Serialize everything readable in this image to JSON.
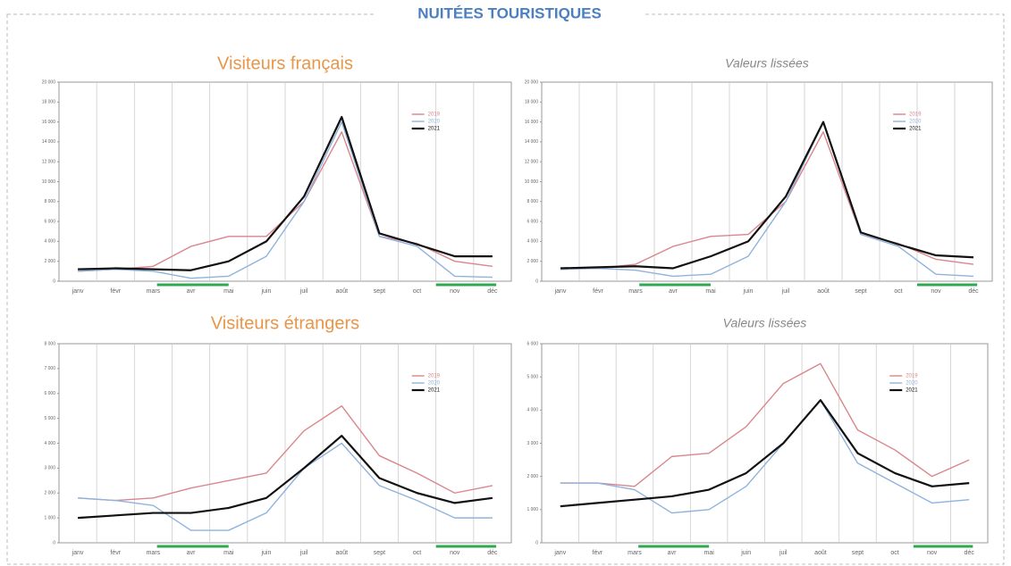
{
  "header": {
    "title": "NUITÉES TOURISTIQUES"
  },
  "chart_data": [
    {
      "type": "line",
      "title": "Visiteurs français",
      "title_color": "#e8964a",
      "title_italic": false,
      "categories": [
        "janv",
        "févr",
        "mars",
        "avr",
        "mai",
        "juin",
        "juil",
        "août",
        "sept",
        "oct",
        "nov",
        "déc"
      ],
      "series": [
        {
          "name": "2019",
          "color": "#d9868c",
          "values": [
            1000,
            1200,
            1500,
            3500,
            4500,
            4500,
            8000,
            15000,
            4500,
            3800,
            2000,
            1500
          ]
        },
        {
          "name": "2020",
          "color": "#8fb3dc",
          "values": [
            1000,
            1200,
            1000,
            300,
            500,
            2500,
            8000,
            16000,
            4500,
            3500,
            500,
            400
          ]
        },
        {
          "name": "2021",
          "color": "#111111",
          "values": [
            1200,
            1300,
            1200,
            1100,
            2000,
            4000,
            8500,
            16500,
            4800,
            3700,
            2500,
            2500
          ]
        }
      ],
      "ylim": [
        0,
        20000
      ],
      "yticks": [
        0,
        {
          "value": 2000,
          "label": "2 000"
        },
        {
          "value": 4000,
          "label": "4 000"
        },
        {
          "value": 6000,
          "label": "6 000"
        },
        {
          "value": 8000,
          "label": "8 000"
        },
        {
          "value": 10000,
          "label": "10 000"
        },
        {
          "value": 12000,
          "label": "12 000"
        },
        {
          "value": 14000,
          "label": "14 000"
        },
        {
          "value": 16000,
          "label": "16 000"
        },
        {
          "value": 18000,
          "label": "18 000"
        },
        {
          "value": 20000,
          "label": "20 000"
        }
      ],
      "legend": "upper right",
      "grid": true
    },
    {
      "type": "line",
      "title": "Valeurs lissées",
      "title_color": "#888888",
      "title_italic": true,
      "categories": [
        "janv",
        "févr",
        "mars",
        "avr",
        "mai",
        "juin",
        "juil",
        "août",
        "sept",
        "oct",
        "nov",
        "déc"
      ],
      "series": [
        {
          "name": "2019",
          "color": "#d9868c",
          "values": [
            1200,
            1300,
            1700,
            3500,
            4500,
            4700,
            8000,
            15000,
            4700,
            3800,
            2200,
            1700
          ]
        },
        {
          "name": "2020",
          "color": "#8fb3dc",
          "values": [
            1200,
            1300,
            1100,
            500,
            700,
            2500,
            8000,
            16000,
            4700,
            3500,
            700,
            500
          ]
        },
        {
          "name": "2021",
          "color": "#111111",
          "values": [
            1300,
            1400,
            1500,
            1300,
            2500,
            4000,
            8500,
            16000,
            4900,
            3700,
            2600,
            2400
          ]
        }
      ],
      "ylim": [
        0,
        20000
      ],
      "yticks": [
        0,
        {
          "value": 2000,
          "label": "2 000"
        },
        {
          "value": 4000,
          "label": "4 000"
        },
        {
          "value": 6000,
          "label": "6 000"
        },
        {
          "value": 8000,
          "label": "8 000"
        },
        {
          "value": 10000,
          "label": "10 000"
        },
        {
          "value": 12000,
          "label": "12 000"
        },
        {
          "value": 14000,
          "label": "14 000"
        },
        {
          "value": 16000,
          "label": "16 000"
        },
        {
          "value": 18000,
          "label": "18 000"
        },
        {
          "value": 20000,
          "label": "20 000"
        }
      ],
      "legend": "upper right",
      "grid": true
    },
    {
      "type": "line",
      "title": "Visiteurs étrangers",
      "title_color": "#e8964a",
      "title_italic": false,
      "categories": [
        "janv",
        "févr",
        "mars",
        "avr",
        "mai",
        "juin",
        "juil",
        "août",
        "sept",
        "oct",
        "nov",
        "déc"
      ],
      "series": [
        {
          "name": "2019",
          "color": "#d9868c",
          "values": [
            1800,
            1700,
            1800,
            2200,
            2500,
            2800,
            4500,
            5500,
            3500,
            2800,
            2000,
            2300
          ]
        },
        {
          "name": "2020",
          "color": "#8fb3dc",
          "values": [
            1800,
            1700,
            1500,
            500,
            500,
            1200,
            3000,
            4000,
            2300,
            1700,
            1000,
            1000
          ]
        },
        {
          "name": "2021",
          "color": "#111111",
          "values": [
            1000,
            1100,
            1200,
            1200,
            1400,
            1800,
            3000,
            4300,
            2600,
            2000,
            1600,
            1800
          ]
        }
      ],
      "ylim": [
        0,
        8000
      ],
      "yticks": [
        0,
        {
          "value": 1000,
          "label": "1 000"
        },
        {
          "value": 2000,
          "label": "2 000"
        },
        {
          "value": 3000,
          "label": "3 000"
        },
        {
          "value": 4000,
          "label": "4 000"
        },
        {
          "value": 5000,
          "label": "5 000"
        },
        {
          "value": 6000,
          "label": "6 000"
        },
        {
          "value": 7000,
          "label": "7 000"
        },
        {
          "value": 8000,
          "label": "8 000"
        }
      ],
      "legend": "upper right",
      "grid": true
    },
    {
      "type": "line",
      "title": "Valeurs lissées",
      "title_color": "#888888",
      "title_italic": true,
      "categories": [
        "janv",
        "févr",
        "mars",
        "avr",
        "mai",
        "juin",
        "juil",
        "août",
        "sept",
        "oct",
        "nov",
        "déc"
      ],
      "series": [
        {
          "name": "2019",
          "color": "#d9868c",
          "values": [
            1800,
            1800,
            1700,
            2600,
            2700,
            3500,
            4800,
            5400,
            3400,
            2800,
            2000,
            2500
          ]
        },
        {
          "name": "2020",
          "color": "#8fb3dc",
          "values": [
            1800,
            1800,
            1600,
            900,
            1000,
            1700,
            3000,
            4300,
            2400,
            1800,
            1200,
            1300
          ]
        },
        {
          "name": "2021",
          "color": "#111111",
          "values": [
            1100,
            1200,
            1300,
            1400,
            1600,
            2100,
            3000,
            4300,
            2700,
            2100,
            1700,
            1800
          ]
        }
      ],
      "ylim": [
        0,
        6000
      ],
      "yticks": [
        0,
        {
          "value": 1000,
          "label": "1 000"
        },
        {
          "value": 2000,
          "label": "2 000"
        },
        {
          "value": 3000,
          "label": "3 000"
        },
        {
          "value": 4000,
          "label": "4 000"
        },
        {
          "value": 5000,
          "label": "5 000"
        },
        {
          "value": 6000,
          "label": "6 000"
        }
      ],
      "legend": "upper right",
      "grid": true
    }
  ]
}
